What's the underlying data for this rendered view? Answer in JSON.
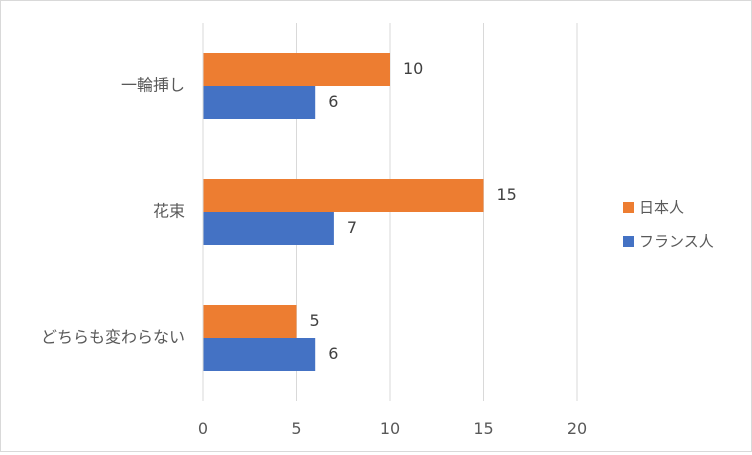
{
  "chart_data": {
    "type": "bar",
    "orientation": "horizontal",
    "categories": [
      "一輪挿し",
      "花束",
      "どちらも変わらない"
    ],
    "series": [
      {
        "name": "日本人",
        "color": "#ED7D31",
        "values": [
          10,
          15,
          5
        ]
      },
      {
        "name": "フランス人",
        "color": "#4472C4",
        "values": [
          6,
          7,
          6
        ]
      }
    ],
    "xlim": [
      0,
      20
    ],
    "xticks": [
      0,
      5,
      10,
      15,
      20
    ],
    "grid": true,
    "data_labels": true,
    "legend_position": "right"
  }
}
